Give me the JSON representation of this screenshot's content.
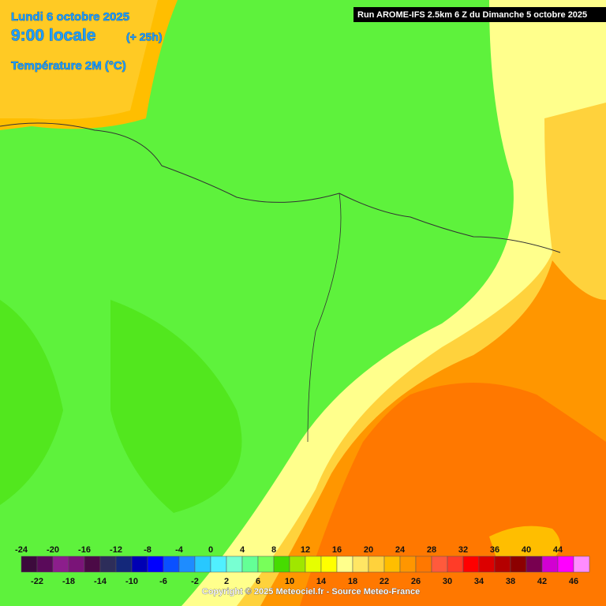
{
  "header": {
    "date": "Lundi 6 octobre 2025",
    "time": "9:00 locale",
    "lead": "(+ 25h)",
    "variable": "Température 2M (°C)"
  },
  "run": "Run AROME-IFS 2.5km 6 Z du Dimanche 5 octobre 2025",
  "legend": {
    "ticks": [
      -24,
      -22,
      -20,
      -18,
      -16,
      -14,
      -12,
      -10,
      -8,
      -6,
      -4,
      -2,
      0,
      2,
      4,
      6,
      8,
      10,
      12,
      14,
      16,
      18,
      20,
      22,
      24,
      26,
      28,
      30,
      32,
      34,
      36,
      38,
      40,
      42,
      44,
      46
    ],
    "colors": [
      "#3c0a3c",
      "#5a0a5a",
      "#8c1e8c",
      "#7a1478",
      "#4b0a46",
      "#2d2d5a",
      "#14287a",
      "#0000b4",
      "#0000ff",
      "#0a50ff",
      "#1e8cff",
      "#28c8ff",
      "#50f0ff",
      "#78ffd2",
      "#64ff96",
      "#78ff5a",
      "#46dc00",
      "#a0e600",
      "#e6ff00",
      "#ffff00",
      "#ffff8c",
      "#ffe664",
      "#ffd23c",
      "#ffbe00",
      "#ff9600",
      "#ff7800",
      "#ff5a3c",
      "#ff3c28",
      "#ff0000",
      "#dc0000",
      "#b40000",
      "#8c0000",
      "#780050",
      "#d200d2",
      "#ff00ff",
      "#ff8cff"
    ]
  },
  "copyright": "Copyright © 2025 Meteociel.fr - Source Meteo-France"
}
